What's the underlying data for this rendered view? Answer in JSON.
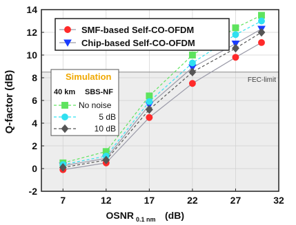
{
  "chart_data": {
    "type": "line",
    "ylabel": "Q-factor (dB)",
    "xlabel_main": "OSNR",
    "xlabel_sub": "0.1 nm",
    "xlabel_unit": "(dB)",
    "xlim": [
      4.5,
      32
    ],
    "ylim": [
      -2,
      14
    ],
    "xticks": [
      7,
      12,
      17,
      22,
      27,
      32
    ],
    "yticks": [
      -2,
      0,
      2,
      4,
      6,
      8,
      10,
      12,
      14
    ],
    "fec_limit": {
      "y": 8.5,
      "label": "FEC-limit"
    },
    "series": [
      {
        "name": "SMF-based Self-CO-OFDM",
        "color": "#ff2a2a",
        "marker": "circle",
        "dashed": false,
        "x": [
          7,
          12,
          17,
          22,
          27,
          30
        ],
        "y": [
          -0.1,
          0.5,
          4.5,
          7.5,
          9.8,
          11.1
        ]
      },
      {
        "name": "Chip-based Self-CO-OFDM",
        "color": "#1a3cff",
        "marker": "triangle-down",
        "dashed": false,
        "x": [
          7,
          12,
          17,
          22,
          27,
          30
        ],
        "y": [
          0.25,
          0.9,
          5.6,
          8.9,
          11.0,
          12.3
        ]
      },
      {
        "name": "No noise",
        "color": "#5ee35e",
        "marker": "square",
        "dashed": true,
        "x": [
          7,
          12,
          17,
          22,
          27,
          30
        ],
        "y": [
          0.5,
          1.5,
          6.4,
          10.0,
          12.4,
          13.5
        ]
      },
      {
        "name": "5 dB",
        "color": "#2fe0f0",
        "marker": "circle",
        "dashed": true,
        "x": [
          7,
          12,
          17,
          22,
          27,
          30
        ],
        "y": [
          0.35,
          1.1,
          5.9,
          9.3,
          11.8,
          13.0
        ]
      },
      {
        "name": "10 dB",
        "color": "#555555",
        "marker": "diamond",
        "dashed": true,
        "x": [
          7,
          12,
          17,
          22,
          27,
          30
        ],
        "y": [
          0.1,
          0.75,
          5.2,
          8.5,
          10.6,
          12.0
        ]
      }
    ],
    "legend_main": [
      "SMF-based Self-CO-OFDM",
      "Chip-based Self-CO-OFDM"
    ],
    "legend_sim": {
      "title": "Simulation",
      "header_left": "40 km",
      "header_right": "SBS-NF",
      "items": [
        "No noise",
        "5 dB",
        "10 dB"
      ]
    }
  }
}
